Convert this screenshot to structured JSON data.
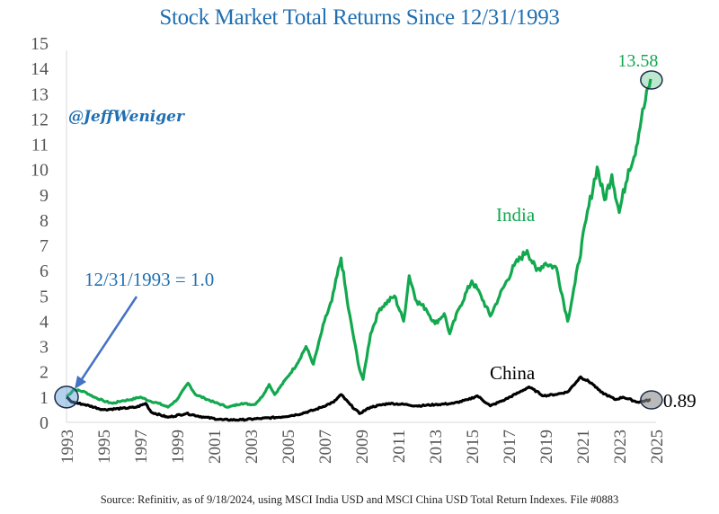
{
  "chart_data": {
    "type": "line",
    "title": "Stock Market Total Returns Since 12/31/1993",
    "xlabel": "",
    "ylabel": "",
    "xlim": [
      1993,
      2025
    ],
    "ylim": [
      0,
      15
    ],
    "grid": false,
    "y_ticks": [
      "0",
      "1",
      "2",
      "3",
      "4",
      "5",
      "6",
      "7",
      "8",
      "9",
      "10",
      "11",
      "12",
      "13",
      "14",
      "15"
    ],
    "x_ticks": [
      "1993",
      "1995",
      "1997",
      "1999",
      "2001",
      "2003",
      "2005",
      "2007",
      "2009",
      "2011",
      "2013",
      "2015",
      "2017",
      "2019",
      "2021",
      "2023",
      "2025"
    ],
    "series": [
      {
        "name": "India",
        "color": "#12a84e",
        "x": [
          1993.0,
          1993.4,
          1994.0,
          1994.5,
          1995.0,
          1995.5,
          1996.0,
          1996.5,
          1997.0,
          1997.5,
          1998.0,
          1998.5,
          1999.0,
          1999.6,
          2000.0,
          2000.5,
          2001.0,
          2001.8,
          2002.5,
          2003.2,
          2003.6,
          2004.0,
          2004.3,
          2005.0,
          2005.5,
          2006.0,
          2006.4,
          2007.0,
          2007.4,
          2007.9,
          2008.3,
          2008.9,
          2009.1,
          2009.5,
          2010.0,
          2010.8,
          2011.3,
          2011.6,
          2012.0,
          2012.5,
          2013.0,
          2013.5,
          2013.8,
          2014.3,
          2015.0,
          2015.5,
          2016.0,
          2016.5,
          2017.3,
          2018.0,
          2018.5,
          2019.0,
          2019.6,
          2020.2,
          2020.6,
          2021.2,
          2021.8,
          2022.2,
          2022.6,
          2023.0,
          2023.5,
          2023.8,
          2024.2,
          2024.7
        ],
        "values": [
          1.0,
          1.3,
          1.2,
          1.0,
          0.85,
          0.75,
          0.85,
          0.9,
          1.0,
          0.85,
          0.75,
          0.6,
          0.9,
          1.55,
          1.1,
          0.95,
          0.8,
          0.6,
          0.75,
          0.7,
          1.0,
          1.5,
          1.1,
          1.8,
          2.3,
          3.0,
          2.3,
          4.0,
          4.8,
          6.5,
          4.5,
          2.1,
          1.7,
          3.5,
          4.5,
          5.0,
          4.0,
          5.8,
          4.8,
          4.5,
          3.9,
          4.3,
          3.5,
          4.5,
          5.6,
          5.0,
          4.2,
          5.0,
          6.2,
          6.8,
          6.0,
          6.3,
          6.1,
          4.0,
          5.5,
          8.0,
          10.1,
          8.8,
          9.8,
          8.3,
          10.0,
          10.5,
          12.0,
          13.58
        ],
        "end_label": "13.58",
        "series_label": "India"
      },
      {
        "name": "China",
        "color": "#000000",
        "x": [
          1993.0,
          1993.3,
          1994.0,
          1995.0,
          1996.0,
          1996.8,
          1997.3,
          1997.6,
          1998.5,
          1999.5,
          2000.5,
          2001.5,
          2002.5,
          2003.5,
          2004.5,
          2005.5,
          2006.5,
          2007.5,
          2007.9,
          2008.4,
          2008.9,
          2009.5,
          2010.5,
          2011.5,
          2012.0,
          2013.0,
          2014.0,
          2014.8,
          2015.3,
          2016.0,
          2016.8,
          2017.6,
          2018.1,
          2018.9,
          2019.5,
          2020.2,
          2020.9,
          2021.5,
          2022.0,
          2022.8,
          2023.2,
          2024.0,
          2024.7
        ],
        "values": [
          1.0,
          0.8,
          0.7,
          0.5,
          0.55,
          0.6,
          0.75,
          0.4,
          0.2,
          0.35,
          0.2,
          0.1,
          0.1,
          0.15,
          0.2,
          0.3,
          0.5,
          0.8,
          1.1,
          0.7,
          0.35,
          0.6,
          0.75,
          0.7,
          0.65,
          0.7,
          0.75,
          0.9,
          1.05,
          0.65,
          0.9,
          1.2,
          1.4,
          1.05,
          1.1,
          1.2,
          1.8,
          1.55,
          1.2,
          0.9,
          1.0,
          0.8,
          0.89
        ],
        "end_label": "0.89",
        "series_label": "China"
      }
    ],
    "annotations": [
      {
        "text": "12/31/1993 = 1.0",
        "points_to": {
          "x": 1993.0,
          "y": 1.0
        }
      },
      {
        "text": "@JeffWeniger"
      }
    ]
  },
  "header": {
    "title": "Stock Market Total Returns Since 12/31/1993"
  },
  "watermark": "@JeffWeniger",
  "annotation_text": "12/31/1993 = 1.0",
  "footer": {
    "source": "Source: Refinitiv, as of 9/18/2024, using MSCI India USD and MSCI China USD Total Return Indexes. File #0883"
  },
  "colors": {
    "title": "#1f6fb2",
    "india": "#12a84e",
    "china": "#000000",
    "annotation": "#1f6fb2",
    "arrow": "#4472c4"
  }
}
